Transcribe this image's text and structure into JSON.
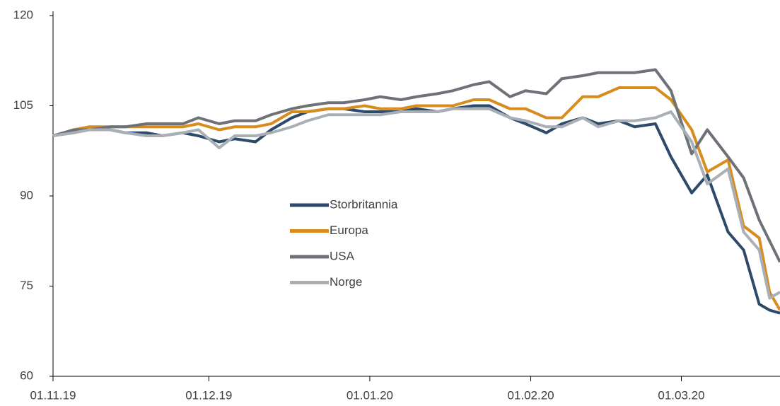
{
  "chart_data": {
    "type": "line",
    "x": [
      "2019-11-01",
      "2019-11-05",
      "2019-11-08",
      "2019-11-12",
      "2019-11-15",
      "2019-11-19",
      "2019-11-22",
      "2019-11-26",
      "2019-11-29",
      "2019-12-03",
      "2019-12-06",
      "2019-12-10",
      "2019-12-13",
      "2019-12-17",
      "2019-12-20",
      "2019-12-24",
      "2019-12-27",
      "2019-12-31",
      "2020-01-03",
      "2020-01-07",
      "2020-01-10",
      "2020-01-14",
      "2020-01-17",
      "2020-01-21",
      "2020-01-24",
      "2020-01-28",
      "2020-01-31",
      "2020-02-04",
      "2020-02-07",
      "2020-02-11",
      "2020-02-14",
      "2020-02-18",
      "2020-02-21",
      "2020-02-25",
      "2020-02-28",
      "2020-03-03",
      "2020-03-06",
      "2020-03-10",
      "2020-03-13",
      "2020-03-16",
      "2020-03-18",
      "2020-03-20"
    ],
    "series": [
      {
        "name": "Storbritannia",
        "color": "#2e4a6b",
        "values": [
          100,
          101,
          101,
          101,
          100.5,
          100.5,
          100,
          100.5,
          100,
          99,
          99.5,
          99,
          101,
          103,
          104,
          104.5,
          104.5,
          104,
          104,
          104,
          104.5,
          104,
          104.5,
          105,
          105,
          103,
          102,
          100.5,
          102,
          103,
          102,
          102.5,
          101.5,
          102,
          96.5,
          90.5,
          93.5,
          84,
          81,
          72,
          71,
          70.5
        ]
      },
      {
        "name": "Europa",
        "color": "#d98c1e",
        "values": [
          100,
          101,
          101.5,
          101.5,
          101.5,
          101.5,
          101.5,
          101.5,
          102,
          101,
          101.5,
          101.5,
          102,
          104,
          104,
          104.5,
          104.5,
          105,
          104.5,
          104.5,
          105,
          105,
          105,
          106,
          106,
          104.5,
          104.5,
          103,
          103,
          106.5,
          106.5,
          108,
          108,
          108,
          106,
          101,
          94,
          96,
          85,
          83,
          74,
          71
        ]
      },
      {
        "name": "USA",
        "color": "#6d7278",
        "values": [
          100,
          101,
          101,
          101.5,
          101.5,
          102,
          102,
          102,
          103,
          102,
          102.5,
          102.5,
          103.5,
          104.5,
          105,
          105.5,
          105.5,
          106,
          106.5,
          106,
          106.5,
          107,
          107.5,
          108.5,
          109,
          106.5,
          107.5,
          107,
          109.5,
          110,
          110.5,
          110.5,
          110.5,
          111,
          107.5,
          97,
          101,
          96.5,
          93,
          86,
          82.5,
          79
        ]
      },
      {
        "name": "Norge",
        "color": "#a9afb6",
        "values": [
          100,
          100.5,
          101,
          101,
          100.5,
          100,
          100,
          100.5,
          101,
          98,
          100,
          100,
          100.5,
          101.5,
          102.5,
          103.5,
          103.5,
          103.5,
          103.5,
          104,
          104,
          104,
          104.5,
          104.5,
          104.5,
          103,
          102.5,
          101.5,
          101.5,
          103,
          101.5,
          102.5,
          102.5,
          103,
          104,
          99,
          92,
          94.5,
          84,
          81,
          73,
          74
        ]
      }
    ],
    "xlim": [
      "2019-11-01",
      "2020-03-20"
    ],
    "xticks": [
      {
        "value": "2019-11-01",
        "label": "01.11.19"
      },
      {
        "value": "2019-12-01",
        "label": "01.12.19"
      },
      {
        "value": "2020-01-01",
        "label": "01.01.20"
      },
      {
        "value": "2020-02-01",
        "label": "01.02.20"
      },
      {
        "value": "2020-03-01",
        "label": "01.03.20"
      }
    ],
    "ylim": [
      60,
      120
    ],
    "yticks": [
      60,
      75,
      90,
      105,
      120
    ],
    "grid": false,
    "legend": "center"
  }
}
